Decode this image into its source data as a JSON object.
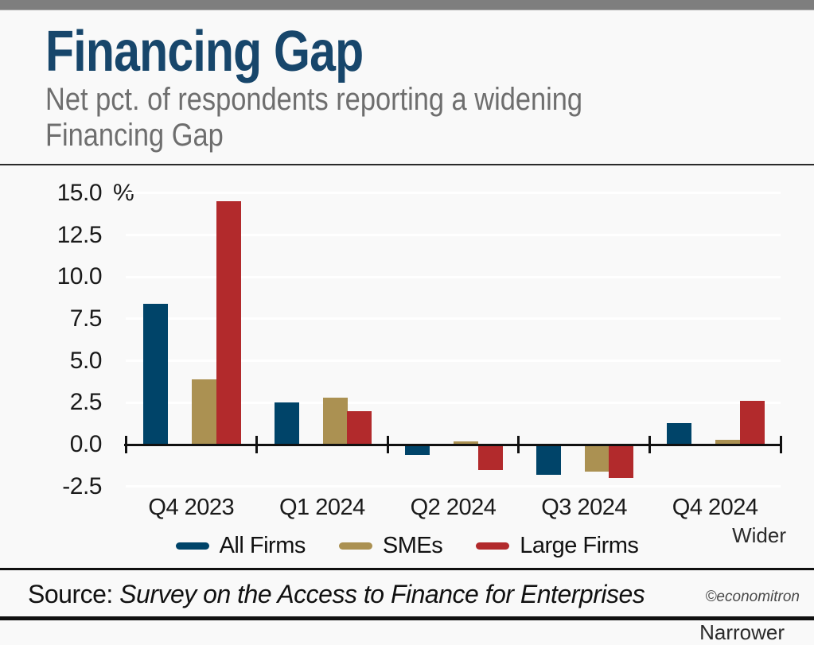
{
  "header": {
    "title": "Financing Gap",
    "subtitle": "Net pct. of respondents reporting a widening Financing Gap",
    "subtitle_line1": "Net pct. of respondents reporting a widening",
    "subtitle_line2": "Financing Gap"
  },
  "theme": {
    "title_color": "#17466b",
    "subtitle_color": "#6e6e6e",
    "background": "#f9f9f9",
    "gridline_color": "#ffffff",
    "axis_color": "#111111"
  },
  "chart_data": {
    "type": "bar",
    "categories": [
      "Q4 2023",
      "Q1 2024",
      "Q2 2024",
      "Q3 2024",
      "Q4 2024"
    ],
    "series": [
      {
        "name": "All Firms",
        "color": "#004469",
        "values": [
          8.4,
          2.5,
          -0.6,
          -1.8,
          1.3
        ]
      },
      {
        "name": "SMEs",
        "color": "#ab9152",
        "values": [
          3.9,
          2.8,
          0.2,
          -1.6,
          0.3
        ]
      },
      {
        "name": "Large Firms",
        "color": "#b22a2c",
        "values": [
          14.5,
          2.0,
          -1.5,
          -2.0,
          2.6
        ]
      }
    ],
    "title": "Financing Gap",
    "xlabel": "",
    "ylabel": "%",
    "unit_label": "%",
    "yticks": [
      15.0,
      12.5,
      10.0,
      7.5,
      5.0,
      2.5,
      0.0,
      -2.5
    ],
    "ylim": [
      -3.5,
      16.5
    ],
    "grid": true,
    "legend_position": "bottom",
    "annotations": {
      "wider": "Wider",
      "narrower": "Narrower"
    }
  },
  "footer": {
    "source_prefix": "Source:",
    "source_name": "Survey on the Access to Finance for Enterprises",
    "credit": "©economitron"
  }
}
